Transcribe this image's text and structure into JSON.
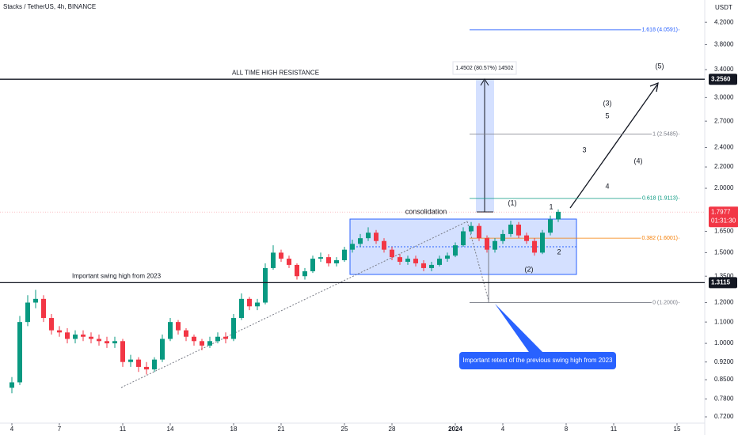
{
  "chart_data": {
    "type": "candlestick",
    "title": "Stacks / TetherUS, 4h, BINANCE",
    "currency": "USDT",
    "log_scale": true,
    "up_color": "#089981",
    "down_color": "#f23645",
    "xlim": [
      -1.5,
      87.5
    ],
    "xticks": [
      {
        "value": 0,
        "label": "4"
      },
      {
        "value": 6,
        "label": "7"
      },
      {
        "value": 14,
        "label": "11"
      },
      {
        "value": 20,
        "label": "14"
      },
      {
        "value": 28,
        "label": "18"
      },
      {
        "value": 34,
        "label": "21"
      },
      {
        "value": 42,
        "label": "25"
      },
      {
        "value": 48,
        "label": "28"
      },
      {
        "value": 56,
        "label": "2024"
      },
      {
        "value": 62,
        "label": "4"
      },
      {
        "value": 70,
        "label": "8"
      },
      {
        "value": 76,
        "label": "11"
      },
      {
        "value": 84,
        "label": "15"
      }
    ],
    "ylim": [
      0.7,
      4.64
    ],
    "yticks": [
      {
        "value": 4.2,
        "label": "4.2000"
      },
      {
        "value": 3.8,
        "label": "3.8000"
      },
      {
        "value": 3.4,
        "label": "3.4000"
      },
      {
        "value": 3.0,
        "label": "3.0000"
      },
      {
        "value": 2.7,
        "label": "2.7000"
      },
      {
        "value": 2.4,
        "label": "2.4000"
      },
      {
        "value": 2.2,
        "label": "2.2000"
      },
      {
        "value": 2.0,
        "label": "2.0000"
      },
      {
        "value": 1.65,
        "label": "1.6500"
      },
      {
        "value": 1.5,
        "label": "1.5000"
      },
      {
        "value": 1.35,
        "label": "1.3500"
      },
      {
        "value": 1.2,
        "label": "1.2000"
      },
      {
        "value": 1.1,
        "label": "1.1000"
      },
      {
        "value": 1.0,
        "label": "1.0000"
      },
      {
        "value": 0.92,
        "label": "0.9200"
      },
      {
        "value": 0.85,
        "label": "0.8500"
      },
      {
        "value": 0.78,
        "label": "0.7800"
      },
      {
        "value": 0.72,
        "label": "0.7200"
      }
    ],
    "open": [
      0.82,
      0.84,
      1.1,
      1.2,
      1.22,
      1.12,
      1.06,
      1.05,
      1.02,
      1.04,
      1.03,
      1.02,
      1.01,
      1.0,
      1.01,
      0.92,
      0.93,
      0.9,
      0.89,
      0.93,
      1.02,
      1.1,
      1.06,
      1.03,
      1.01,
      0.99,
      1.01,
      1.03,
      1.02,
      1.12,
      1.22,
      1.18,
      1.2,
      1.4,
      1.5,
      1.46,
      1.42,
      1.35,
      1.38,
      1.46,
      1.47,
      1.43,
      1.45,
      1.52,
      1.56,
      1.6,
      1.64,
      1.58,
      1.52,
      1.47,
      1.44,
      1.46,
      1.43,
      1.4,
      1.42,
      1.46,
      1.48,
      1.55,
      1.65,
      1.69,
      1.6,
      1.52,
      1.58,
      1.63,
      1.7,
      1.62,
      1.58,
      1.5,
      1.64,
      1.74
    ],
    "high": [
      0.86,
      1.13,
      1.24,
      1.27,
      1.24,
      1.14,
      1.08,
      1.07,
      1.06,
      1.06,
      1.05,
      1.04,
      1.03,
      1.03,
      1.02,
      0.95,
      0.94,
      0.92,
      0.94,
      1.04,
      1.12,
      1.11,
      1.07,
      1.04,
      1.02,
      1.03,
      1.05,
      1.05,
      1.14,
      1.25,
      1.23,
      1.22,
      1.43,
      1.55,
      1.52,
      1.48,
      1.43,
      1.4,
      1.48,
      1.5,
      1.49,
      1.47,
      1.54,
      1.59,
      1.63,
      1.68,
      1.66,
      1.6,
      1.54,
      1.49,
      1.48,
      1.48,
      1.45,
      1.44,
      1.48,
      1.5,
      1.57,
      1.68,
      1.72,
      1.71,
      1.62,
      1.6,
      1.66,
      1.73,
      1.72,
      1.64,
      1.6,
      1.66,
      1.77,
      1.82
    ],
    "low": [
      0.8,
      0.83,
      1.08,
      1.17,
      1.1,
      1.04,
      1.03,
      1.0,
      1.0,
      1.01,
      1.0,
      0.99,
      0.98,
      0.98,
      0.9,
      0.9,
      0.88,
      0.87,
      0.88,
      0.92,
      1.01,
      1.04,
      1.01,
      0.99,
      0.97,
      0.98,
      1.0,
      1.0,
      1.01,
      1.11,
      1.16,
      1.16,
      1.19,
      1.39,
      1.44,
      1.4,
      1.33,
      1.33,
      1.37,
      1.44,
      1.41,
      1.41,
      1.44,
      1.5,
      1.54,
      1.58,
      1.56,
      1.5,
      1.45,
      1.42,
      1.42,
      1.41,
      1.38,
      1.38,
      1.41,
      1.44,
      1.47,
      1.54,
      1.63,
      1.58,
      1.5,
      1.5,
      1.56,
      1.61,
      1.6,
      1.56,
      1.48,
      1.49,
      1.62,
      1.72
    ],
    "close": [
      0.84,
      1.1,
      1.2,
      1.22,
      1.12,
      1.06,
      1.05,
      1.02,
      1.04,
      1.03,
      1.02,
      1.01,
      1.0,
      1.01,
      0.92,
      0.93,
      0.9,
      0.89,
      0.93,
      1.02,
      1.1,
      1.06,
      1.03,
      1.01,
      0.99,
      1.01,
      1.03,
      1.02,
      1.12,
      1.22,
      1.18,
      1.2,
      1.4,
      1.5,
      1.46,
      1.42,
      1.35,
      1.38,
      1.46,
      1.47,
      1.43,
      1.45,
      1.52,
      1.56,
      1.6,
      1.64,
      1.58,
      1.52,
      1.47,
      1.44,
      1.46,
      1.43,
      1.4,
      1.42,
      1.46,
      1.48,
      1.55,
      1.65,
      1.69,
      1.6,
      1.52,
      1.58,
      1.63,
      1.7,
      1.62,
      1.58,
      1.5,
      1.64,
      1.74,
      1.8
    ],
    "levels": [
      {
        "value": 3.256,
        "label": "3.2560",
        "text": "ALL TIME HIGH RESISTANCE"
      },
      {
        "value": 1.3115,
        "label": "1.3115",
        "text": "Important swing high from 2023"
      }
    ],
    "current_price": {
      "value": 1.7977,
      "label": "1.7977",
      "countdown": "01:31:30"
    },
    "fib_levels": [
      {
        "value": 4.0591,
        "label": "1.618 (4.0591)",
        "color": "#2962ff"
      },
      {
        "value": 2.5485,
        "label": "1 (2.5485)",
        "color": "#787b86"
      },
      {
        "value": 1.9113,
        "label": "0.618 (1.9113)",
        "color": "#089981"
      },
      {
        "value": 1.6001,
        "label": "0.382 (1.6001)",
        "color": "#f57c00"
      },
      {
        "value": 1.2,
        "label": "0 (1.2000)",
        "color": "#787b86"
      }
    ],
    "box_label": "consolidation",
    "measure_label": "1.4502 (80.57%) 14502",
    "callout": "Important retest of the previous swing high from 2023",
    "wave_labels": [
      "(1)",
      "(2)",
      "(3)",
      "(4)",
      "(5)",
      "1",
      "2",
      "3",
      "4",
      "5"
    ]
  }
}
